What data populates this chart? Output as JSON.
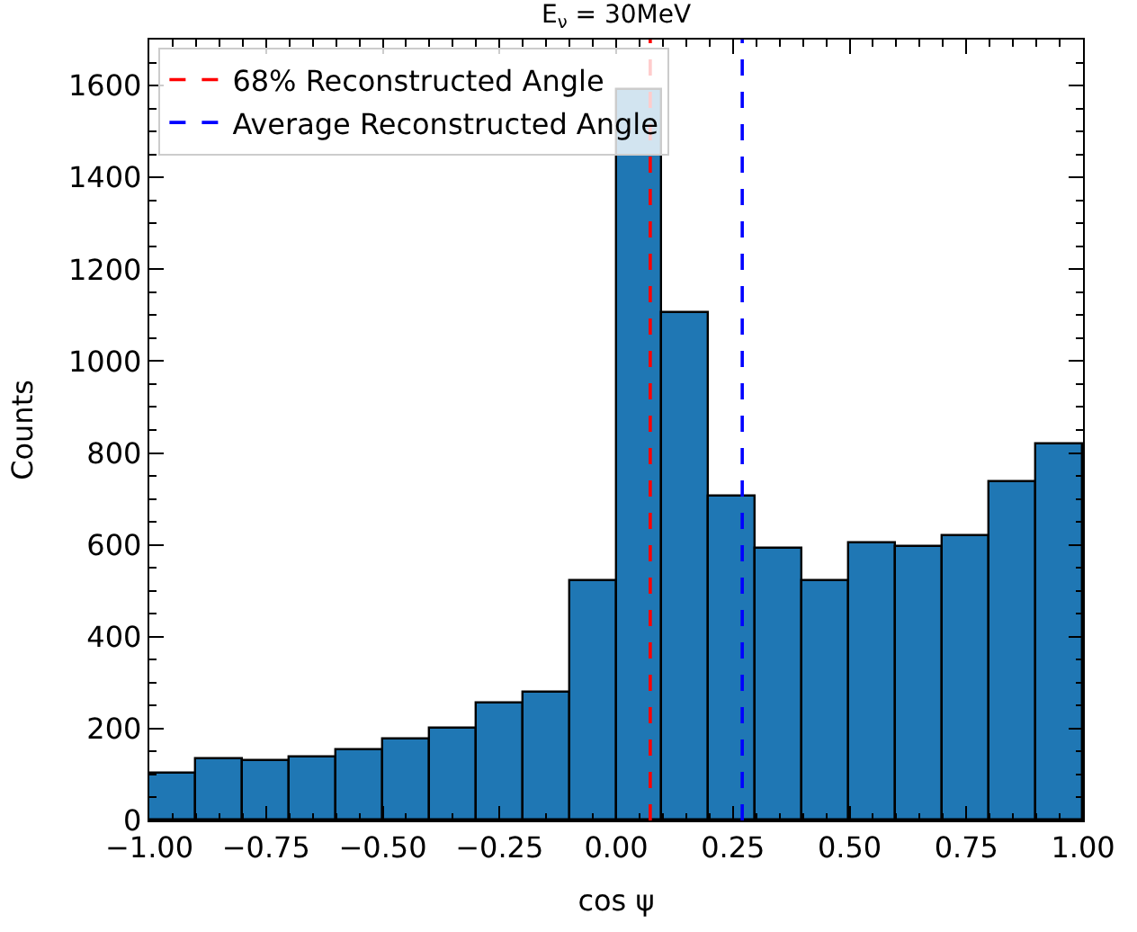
{
  "chart_data": {
    "type": "histogram",
    "title": "E$_{ν}$ = 30MeV",
    "xlabel": "cos ψ",
    "ylabel": "Counts",
    "bins": [
      -1.0,
      -0.9,
      -0.8,
      -0.7,
      -0.6,
      -0.5,
      -0.4,
      -0.3,
      -0.2,
      -0.1,
      0.0,
      0.1,
      0.2,
      0.3,
      0.4,
      0.5,
      0.6,
      0.7,
      0.8,
      0.9,
      1.0
    ],
    "values": [
      102,
      133,
      128,
      137,
      154,
      177,
      198,
      255,
      279,
      522,
      1590,
      1103,
      707,
      592,
      522,
      603,
      594,
      618,
      735,
      820
    ],
    "color": "#1f77b4",
    "xlim": [
      -1.0,
      1.0
    ],
    "xticks": [
      {
        "value": -1.0,
        "label": "−1.00"
      },
      {
        "value": -0.75,
        "label": "−0.75"
      },
      {
        "value": -0.5,
        "label": "−0.50"
      },
      {
        "value": -0.25,
        "label": "−0.25"
      },
      {
        "value": 0.0,
        "label": "0.00"
      },
      {
        "value": 0.25,
        "label": "0.25"
      },
      {
        "value": 0.5,
        "label": "0.50"
      },
      {
        "value": 0.75,
        "label": "0.75"
      },
      {
        "value": 1.0,
        "label": "1.00"
      }
    ],
    "ylim": [
      0,
      1700
    ],
    "yticks": [
      0,
      200,
      400,
      600,
      800,
      1000,
      1200,
      1400,
      1600
    ],
    "ref_lines": [
      {
        "axis": "x",
        "value": 0.073,
        "label": "68% Reconstructed Angle",
        "color": "#ff0000",
        "line_style": "dashed"
      },
      {
        "axis": "x",
        "value": 0.27,
        "label": "Average Reconstructed Angle",
        "color": "#0000ff",
        "line_style": "dashed"
      }
    ],
    "legend": "top left"
  }
}
